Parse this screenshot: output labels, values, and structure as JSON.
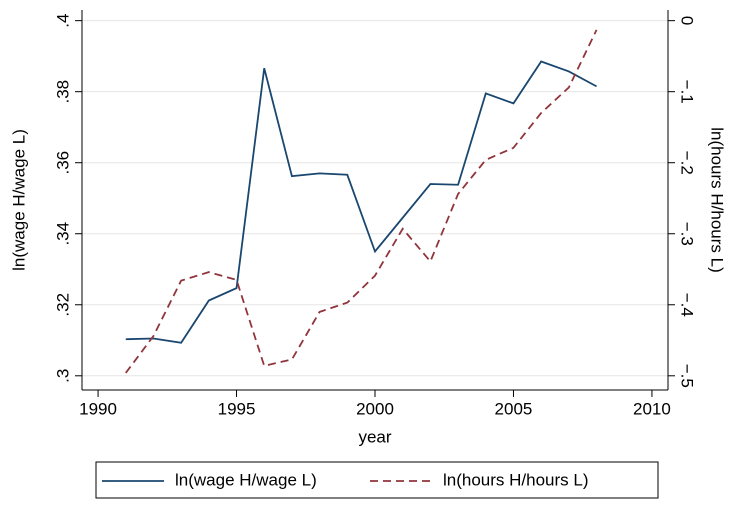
{
  "chart_data": {
    "type": "line",
    "x_label": "year",
    "y_label": "ln(wage H/wage L)",
    "y2_label": "ln(hours H/hours L)",
    "x": [
      1991,
      1992,
      1993,
      1994,
      1995,
      1996,
      1997,
      1998,
      1999,
      2000,
      2001,
      2002,
      2003,
      2004,
      2005,
      2006,
      2007,
      2008
    ],
    "series": [
      {
        "name": "ln(wage H/wage L)",
        "color": "#1a476f",
        "dash": "solid",
        "values": [
          0.3103,
          0.3105,
          0.3093,
          0.3212,
          0.3247,
          0.3866,
          0.3562,
          0.357,
          0.3566,
          0.335,
          0.3445,
          0.354,
          0.3538,
          0.3795,
          0.3767,
          0.3885,
          0.3857,
          0.3815
        ]
      },
      {
        "name": "ln(hours H/hours L)",
        "color": "#90353b",
        "dash": "dashed",
        "axis": "y2",
        "values": [
          -0.496,
          -0.444,
          -0.366,
          -0.354,
          -0.365,
          -0.486,
          -0.477,
          -0.41,
          -0.397,
          -0.359,
          -0.293,
          -0.339,
          -0.244,
          -0.196,
          -0.179,
          -0.13,
          -0.094,
          -0.013
        ]
      }
    ],
    "xlim": [
      1989.42,
      2010.58
    ],
    "xticks": [
      1990,
      1995,
      2000,
      2005,
      2010
    ],
    "ylim": [
      0.296,
      0.403
    ],
    "yticks": [
      {
        "value": 0.3,
        "label": ".3"
      },
      {
        "value": 0.32,
        "label": ".32"
      },
      {
        "value": 0.34,
        "label": ".34"
      },
      {
        "value": 0.36,
        "label": ".36"
      },
      {
        "value": 0.38,
        "label": ".38"
      },
      {
        "value": 0.4,
        "label": ".4"
      }
    ],
    "y2lim": [
      -0.52,
      0.015
    ],
    "y2ticks": [
      {
        "value": -0.5,
        "label": "−.5"
      },
      {
        "value": -0.4,
        "label": "−.4"
      },
      {
        "value": -0.3,
        "label": "−.3"
      },
      {
        "value": -0.2,
        "label": "−.2"
      },
      {
        "value": -0.1,
        "label": "−.1"
      },
      0
    ],
    "grid": true,
    "legend": "bottom"
  }
}
